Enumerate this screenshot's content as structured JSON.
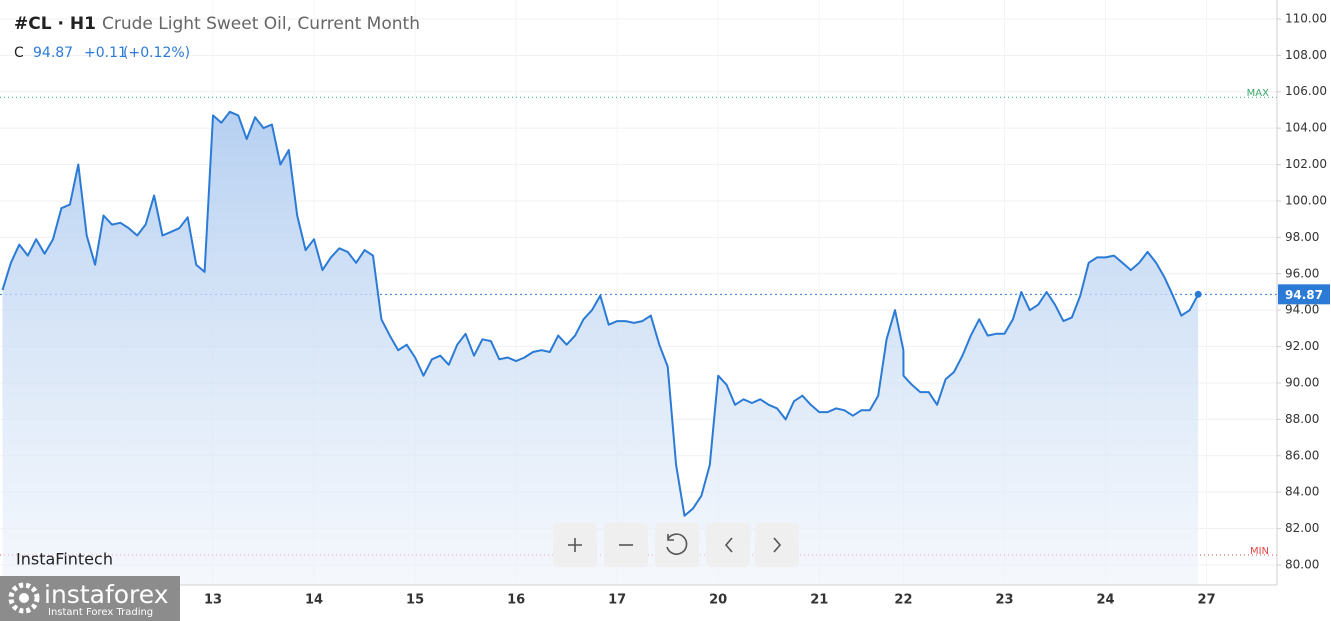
{
  "chart_data": {
    "type": "line",
    "title": "#CL · H1",
    "subtitle": "Crude Light Sweet Oil, Current Month",
    "close_label": "C",
    "close": 94.87,
    "change": "+0.11",
    "change_pct": "(+0.12%)",
    "max_label": "MAX",
    "max": 105.7,
    "min_label": "MIN",
    "min": 80.55,
    "watermark": "InstaFintech",
    "logo_text": "instaforex",
    "logo_subtext": "Instant Forex Trading",
    "categories": [
      null,
      null,
      null,
      null,
      null,
      null,
      null,
      null,
      null,
      null,
      null,
      null,
      null,
      null,
      null,
      null,
      null,
      null,
      null,
      null,
      null,
      null,
      null,
      null,
      null,
      "13",
      null,
      null,
      null,
      null,
      null,
      null,
      null,
      null,
      null,
      null,
      null,
      "14",
      null,
      null,
      null,
      null,
      null,
      null,
      null,
      null,
      null,
      null,
      null,
      "15",
      null,
      null,
      null,
      null,
      null,
      null,
      null,
      null,
      null,
      null,
      null,
      "16",
      null,
      null,
      null,
      null,
      null,
      null,
      null,
      null,
      null,
      null,
      null,
      "17",
      null,
      null,
      null,
      null,
      null,
      null,
      null,
      null,
      null,
      null,
      null,
      "20",
      null,
      null,
      null,
      null,
      null,
      null,
      null,
      null,
      null,
      null,
      null,
      "21",
      null,
      null,
      null,
      null,
      null,
      null,
      null,
      null,
      null,
      null,
      "22",
      null,
      null,
      null,
      null,
      null,
      null,
      null,
      null,
      null,
      null,
      null,
      "23",
      null,
      null,
      null,
      null,
      null,
      null,
      null,
      null,
      null,
      null,
      null,
      "24",
      null,
      null,
      null,
      null,
      null,
      null,
      null,
      null,
      null,
      null,
      null,
      "27"
    ],
    "series": [
      {
        "color": "#2b7bd6",
        "values": [
          95.1,
          96.6,
          97.6,
          97.0,
          97.9,
          97.1,
          97.9,
          99.6,
          99.8,
          102.0,
          98.1,
          96.5,
          99.2,
          98.7,
          98.8,
          98.5,
          98.1,
          98.7,
          100.3,
          98.1,
          98.3,
          98.5,
          99.1,
          96.5,
          96.1,
          104.7,
          104.3,
          104.9,
          104.7,
          103.4,
          104.6,
          104.0,
          104.2,
          102.0,
          102.8,
          99.2,
          97.3,
          97.9,
          96.2,
          96.9,
          97.4,
          97.2,
          96.6,
          97.3,
          97.0,
          93.5,
          92.6,
          91.8,
          92.1,
          91.4,
          90.4,
          91.3,
          91.5,
          91.0,
          92.1,
          92.7,
          91.5,
          92.4,
          92.3,
          91.3,
          91.4,
          91.2,
          91.4,
          91.7,
          91.8,
          91.7,
          92.6,
          92.1,
          92.6,
          93.5,
          94.0,
          94.8,
          93.2,
          93.4,
          93.4,
          93.3,
          93.4,
          93.7,
          92.1,
          90.9,
          85.5,
          82.7,
          83.1,
          83.8,
          85.5,
          90.4,
          89.9,
          88.8,
          89.1,
          88.9,
          89.1,
          88.8,
          88.6,
          88.0,
          89.0,
          89.3,
          88.8,
          88.4,
          88.4,
          88.6,
          88.5,
          88.2,
          88.5,
          88.5,
          89.3,
          92.4,
          94.0,
          91.8,
          90.4,
          89.9,
          89.5,
          89.5,
          88.8,
          90.2,
          90.6,
          91.5,
          92.6,
          93.5,
          92.6,
          92.7,
          92.7,
          93.5,
          95.0,
          94.0,
          94.3,
          95.0,
          94.3,
          93.4,
          93.6,
          94.8,
          96.6,
          96.9,
          96.9,
          97.0,
          96.6,
          96.2,
          96.6,
          97.2,
          96.6,
          95.8,
          94.8,
          93.7,
          94.0,
          94.87,
          null
        ]
      }
    ],
    "ylim": [
      78.9,
      111.04
    ],
    "yticks": [
      {
        "value": 80,
        "label": "80.00"
      },
      {
        "value": 82,
        "label": "82.00"
      },
      {
        "value": 84,
        "label": "84.00"
      },
      {
        "value": 86,
        "label": "86.00"
      },
      {
        "value": 88,
        "label": "88.00"
      },
      {
        "value": 90,
        "label": "90.00"
      },
      {
        "value": 92,
        "label": "92.00"
      },
      {
        "value": 94,
        "label": "94.00"
      },
      {
        "value": 96,
        "label": "96.00"
      },
      {
        "value": 98,
        "label": "98.00"
      },
      {
        "value": 100,
        "label": "100.00"
      },
      {
        "value": 102,
        "label": "102.00"
      },
      {
        "value": 104,
        "label": "104.00"
      },
      {
        "value": 106,
        "label": "106.00"
      },
      {
        "value": 108,
        "label": "108.00"
      },
      {
        "value": 110,
        "label": "110.00"
      }
    ],
    "grid": true
  }
}
